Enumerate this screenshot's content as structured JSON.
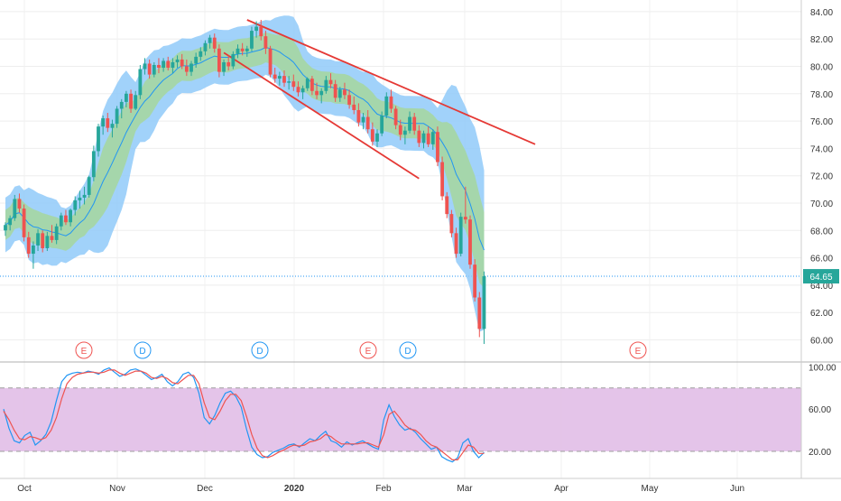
{
  "chart_data": [
    {
      "type": "candlestick",
      "title": "",
      "x_axis_labels": [
        "Oct",
        "Nov",
        "Dec",
        "2020",
        "Feb",
        "Mar",
        "Apr",
        "May",
        "Jun"
      ],
      "y_ticks": [
        "60.00",
        "62.00",
        "64.00",
        "66.00",
        "68.00",
        "70.00",
        "72.00",
        "74.00",
        "76.00",
        "78.00",
        "80.00",
        "82.00",
        "84.00"
      ],
      "ylim": [
        59.5,
        84.5
      ],
      "last_price": 64.65,
      "last_price_label": "64.65",
      "colors": {
        "up": "#26a69a",
        "down": "#ef5350",
        "band_outer": "#90caf9",
        "band_inner": "#a5d6a7",
        "band_highlight": "#ffeb3b",
        "middle_line": "#2196f3",
        "trend_lines": "#e53935",
        "price_line": "#2196f3"
      },
      "candles_ohlc": [
        [
          68.0,
          68.6,
          67.6,
          68.4
        ],
        [
          68.4,
          69.1,
          68.0,
          68.9
        ],
        [
          68.9,
          70.6,
          68.7,
          70.3
        ],
        [
          70.3,
          70.7,
          69.3,
          69.6
        ],
        [
          69.6,
          69.9,
          67.2,
          67.5
        ],
        [
          67.5,
          67.9,
          66.0,
          66.3
        ],
        [
          66.3,
          67.2,
          65.2,
          66.9
        ],
        [
          66.9,
          68.1,
          66.5,
          67.8
        ],
        [
          67.8,
          68.0,
          66.4,
          66.7
        ],
        [
          66.7,
          67.9,
          66.5,
          67.6
        ],
        [
          67.6,
          68.4,
          67.1,
          67.3
        ],
        [
          67.3,
          68.5,
          67.0,
          68.3
        ],
        [
          68.3,
          69.3,
          68.0,
          69.1
        ],
        [
          69.1,
          69.5,
          68.4,
          68.6
        ],
        [
          68.6,
          69.6,
          68.3,
          69.5
        ],
        [
          69.5,
          70.5,
          69.1,
          70.2
        ],
        [
          70.2,
          70.9,
          69.6,
          70.4
        ],
        [
          70.4,
          71.2,
          69.9,
          70.6
        ],
        [
          70.6,
          72.0,
          70.4,
          71.9
        ],
        [
          71.9,
          74.2,
          71.6,
          73.8
        ],
        [
          73.8,
          75.8,
          73.4,
          75.6
        ],
        [
          75.6,
          76.4,
          75.0,
          76.2
        ],
        [
          76.2,
          76.6,
          75.2,
          75.5
        ],
        [
          75.5,
          76.1,
          74.8,
          75.8
        ],
        [
          75.8,
          77.1,
          75.5,
          76.9
        ],
        [
          76.9,
          77.6,
          76.2,
          77.4
        ],
        [
          77.4,
          78.2,
          77.0,
          78.0
        ],
        [
          78.0,
          78.3,
          76.6,
          76.9
        ],
        [
          76.9,
          78.2,
          76.8,
          77.9
        ],
        [
          77.9,
          80.1,
          77.6,
          79.8
        ],
        [
          79.8,
          80.6,
          79.4,
          80.2
        ],
        [
          80.2,
          80.5,
          79.1,
          79.4
        ],
        [
          79.4,
          80.3,
          79.2,
          80.1
        ],
        [
          80.1,
          80.6,
          79.5,
          79.9
        ],
        [
          79.9,
          80.6,
          79.6,
          80.4
        ],
        [
          80.4,
          80.7,
          79.7,
          79.9
        ],
        [
          79.9,
          80.6,
          79.5,
          80.3
        ],
        [
          80.3,
          80.8,
          79.9,
          80.5
        ],
        [
          80.5,
          80.9,
          79.8,
          80.0
        ],
        [
          80.0,
          80.5,
          79.3,
          79.6
        ],
        [
          79.6,
          80.4,
          79.3,
          80.2
        ],
        [
          80.2,
          81.0,
          79.9,
          80.7
        ],
        [
          80.7,
          81.4,
          80.4,
          81.1
        ],
        [
          81.1,
          81.9,
          80.8,
          81.7
        ],
        [
          81.7,
          82.3,
          81.3,
          82.1
        ],
        [
          82.1,
          82.4,
          81.0,
          81.3
        ],
        [
          81.3,
          81.6,
          79.2,
          79.6
        ],
        [
          79.6,
          80.5,
          79.3,
          80.3
        ],
        [
          80.3,
          80.8,
          79.7,
          80.0
        ],
        [
          80.0,
          81.1,
          79.8,
          80.9
        ],
        [
          80.9,
          81.6,
          80.6,
          81.3
        ],
        [
          81.3,
          81.7,
          80.8,
          81.1
        ],
        [
          81.1,
          81.5,
          80.7,
          81.3
        ],
        [
          81.3,
          82.9,
          81.1,
          82.6
        ],
        [
          82.6,
          83.3,
          82.1,
          82.9
        ],
        [
          82.9,
          83.4,
          81.9,
          82.2
        ],
        [
          82.2,
          82.6,
          80.9,
          81.3
        ],
        [
          81.3,
          81.5,
          79.2,
          79.4
        ],
        [
          79.4,
          79.9,
          78.8,
          79.1
        ],
        [
          79.1,
          79.6,
          78.6,
          79.3
        ],
        [
          79.3,
          79.7,
          78.5,
          78.8
        ],
        [
          78.8,
          79.3,
          78.3,
          78.9
        ],
        [
          78.9,
          79.4,
          78.2,
          78.5
        ],
        [
          78.5,
          78.9,
          77.8,
          78.1
        ],
        [
          78.1,
          78.6,
          77.6,
          78.4
        ],
        [
          78.4,
          79.2,
          78.2,
          79.1
        ],
        [
          79.1,
          79.3,
          77.9,
          78.2
        ],
        [
          78.2,
          78.8,
          77.6,
          77.9
        ],
        [
          77.9,
          78.4,
          77.3,
          78.2
        ],
        [
          78.2,
          79.3,
          78.0,
          79.0
        ],
        [
          79.0,
          79.5,
          78.4,
          78.7
        ],
        [
          78.7,
          79.0,
          77.4,
          77.7
        ],
        [
          77.7,
          78.5,
          77.4,
          78.3
        ],
        [
          78.3,
          78.8,
          77.6,
          77.9
        ],
        [
          77.9,
          78.3,
          76.9,
          77.2
        ],
        [
          77.2,
          77.8,
          76.5,
          76.8
        ],
        [
          76.8,
          77.3,
          75.6,
          75.9
        ],
        [
          75.9,
          76.6,
          75.4,
          76.3
        ],
        [
          76.3,
          76.8,
          75.1,
          75.4
        ],
        [
          75.4,
          75.9,
          74.2,
          74.5
        ],
        [
          74.5,
          75.4,
          74.1,
          75.1
        ],
        [
          75.1,
          76.7,
          74.9,
          76.4
        ],
        [
          76.4,
          78.1,
          76.2,
          77.8
        ],
        [
          77.8,
          78.3,
          76.6,
          76.9
        ],
        [
          76.9,
          77.1,
          75.4,
          75.7
        ],
        [
          75.7,
          76.1,
          74.6,
          75.0
        ],
        [
          75.0,
          75.6,
          74.3,
          75.3
        ],
        [
          75.3,
          76.7,
          75.1,
          76.3
        ],
        [
          76.3,
          76.6,
          75.0,
          75.3
        ],
        [
          75.3,
          75.7,
          74.1,
          74.4
        ],
        [
          74.4,
          75.3,
          74.0,
          75.1
        ],
        [
          75.1,
          75.6,
          74.1,
          74.3
        ],
        [
          74.3,
          75.4,
          73.9,
          75.2
        ],
        [
          75.2,
          75.6,
          72.7,
          73.0
        ],
        [
          73.0,
          73.4,
          70.2,
          70.5
        ],
        [
          70.5,
          70.8,
          68.9,
          69.2
        ],
        [
          69.2,
          69.5,
          67.5,
          67.8
        ],
        [
          67.8,
          68.2,
          66.0,
          66.3
        ],
        [
          66.3,
          69.3,
          66.1,
          69.0
        ],
        [
          69.0,
          71.2,
          68.5,
          68.8
        ],
        [
          68.8,
          69.1,
          65.2,
          65.5
        ],
        [
          65.5,
          65.9,
          62.8,
          63.1
        ],
        [
          63.1,
          63.5,
          60.2,
          60.8
        ],
        [
          60.8,
          65.0,
          59.7,
          64.65
        ]
      ]
    },
    {
      "type": "line",
      "title": "",
      "y_ticks": [
        "20.00",
        "60.00",
        "100.00"
      ],
      "ylim": [
        0,
        102
      ],
      "band": [
        20,
        80
      ],
      "colors": {
        "k": "#2196f3",
        "d": "#ef5350",
        "band_fill": "#e1bee7",
        "band_border": "#9e9e9e"
      },
      "series": [
        {
          "values": [
            60,
            42,
            30,
            28,
            35,
            38,
            26,
            30,
            36,
            48,
            68,
            86,
            92,
            94,
            95,
            94,
            96,
            95,
            93,
            97,
            99,
            95,
            91,
            93,
            97,
            98,
            96,
            92,
            88,
            90,
            93,
            86,
            82,
            86,
            93,
            95,
            90,
            75,
            52,
            46,
            54,
            66,
            75,
            77,
            72,
            62,
            41,
            24,
            17,
            14,
            15,
            19,
            21,
            23,
            26,
            27,
            24,
            28,
            32,
            30,
            35,
            39,
            30,
            28,
            24,
            29,
            26,
            28,
            30,
            27,
            24,
            22,
            50,
            64,
            53,
            45,
            40,
            42,
            38,
            32,
            27,
            22,
            24,
            15,
            12,
            10,
            14,
            28,
            32,
            20,
            14,
            19
          ]
        },
        {
          "values": [
            58,
            50,
            40,
            32,
            31,
            34,
            33,
            31,
            33,
            40,
            52,
            70,
            84,
            90,
            93,
            94,
            95,
            95,
            94,
            95,
            97,
            97,
            94,
            92,
            94,
            96,
            96,
            94,
            90,
            89,
            91,
            89,
            85,
            84,
            88,
            92,
            92,
            84,
            66,
            52,
            50,
            58,
            68,
            74,
            74,
            68,
            53,
            36,
            23,
            16,
            14,
            16,
            19,
            21,
            24,
            26,
            25,
            26,
            29,
            30,
            32,
            36,
            34,
            30,
            27,
            27,
            27,
            27,
            28,
            28,
            26,
            24,
            36,
            55,
            58,
            52,
            45,
            41,
            40,
            36,
            30,
            26,
            24,
            20,
            16,
            12,
            12,
            19,
            26,
            24,
            18,
            18
          ]
        }
      ]
    }
  ],
  "event_markers": [
    {
      "label": "E",
      "color": "#ef5350"
    },
    {
      "label": "D",
      "color": "#2196f3"
    },
    {
      "label": "D",
      "color": "#2196f3"
    },
    {
      "label": "E",
      "color": "#ef5350"
    },
    {
      "label": "D",
      "color": "#2196f3"
    },
    {
      "label": "E",
      "color": "#ef5350"
    }
  ]
}
